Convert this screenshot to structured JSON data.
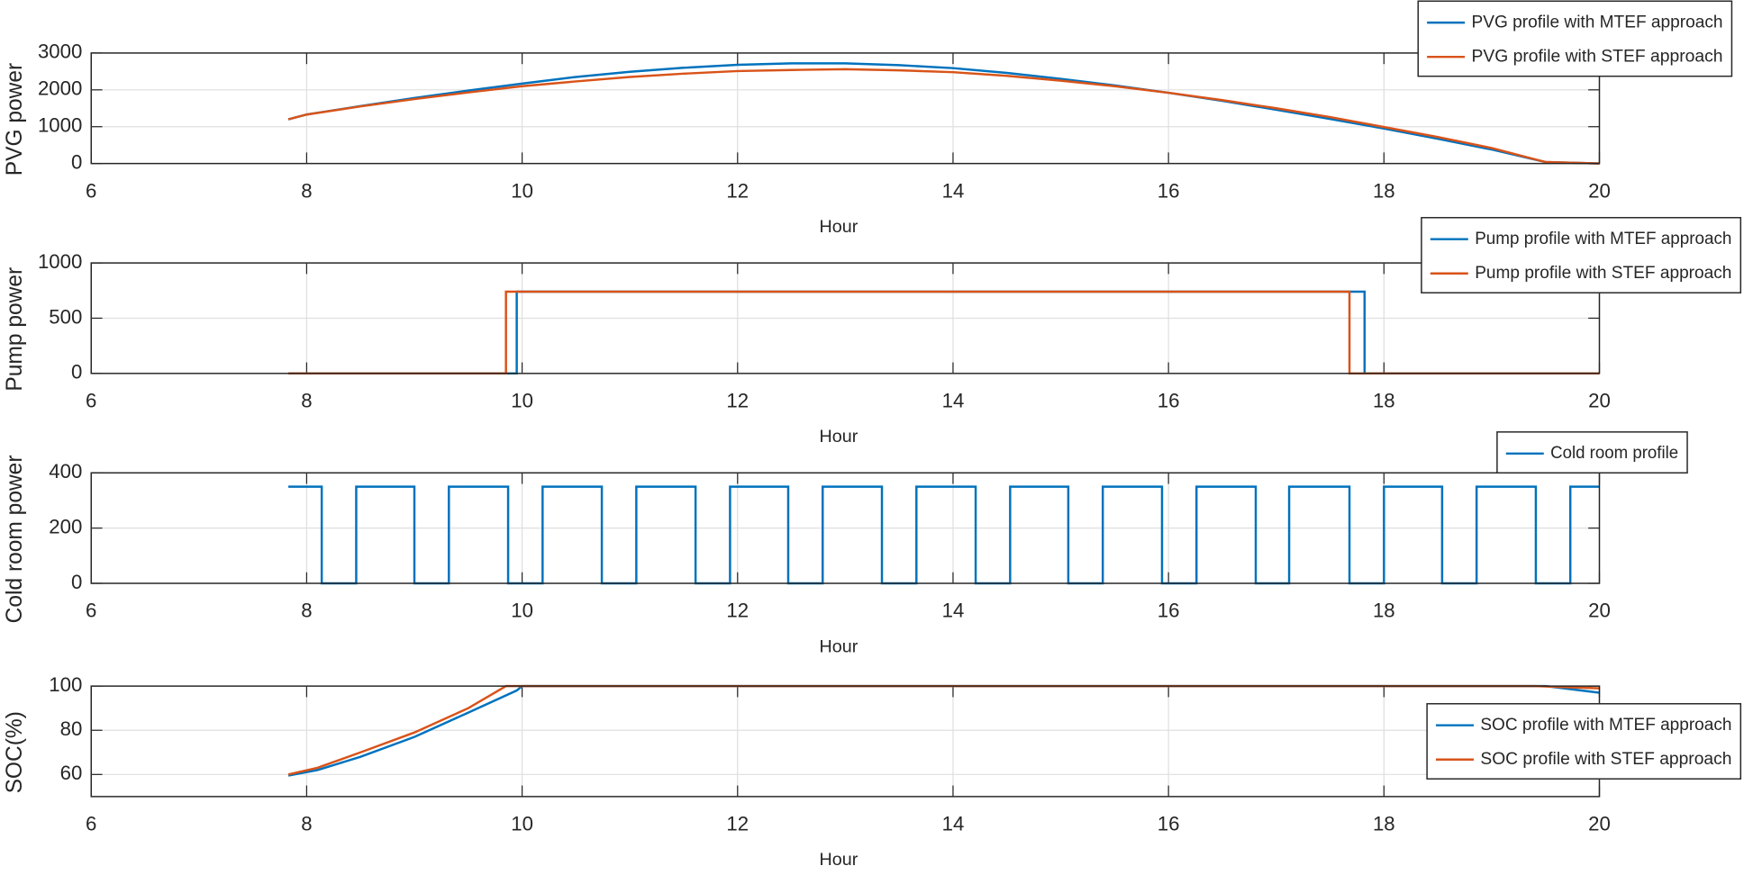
{
  "chart_data": [
    {
      "type": "line",
      "xlabel": "Hour",
      "ylabel": "PVG power",
      "xlim": [
        6,
        20
      ],
      "xticks": [
        6,
        8,
        10,
        12,
        14,
        16,
        18,
        20
      ],
      "ylim": [
        0,
        3000
      ],
      "yticks": [
        0,
        1000,
        2000,
        3000
      ],
      "grid": true,
      "legend": "northeast",
      "series": [
        {
          "name": "PVG profile with MTEF approach",
          "color": "#0072BD",
          "x": [
            7.83,
            8,
            8.5,
            9,
            9.5,
            10,
            10.5,
            11,
            11.5,
            12,
            12.5,
            13,
            13.5,
            14,
            14.5,
            15,
            15.5,
            16,
            16.5,
            17,
            17.5,
            18,
            18.5,
            19,
            19.5,
            20
          ],
          "values": [
            1200,
            1330,
            1560,
            1780,
            1980,
            2170,
            2350,
            2490,
            2600,
            2680,
            2720,
            2720,
            2670,
            2590,
            2460,
            2300,
            2120,
            1920,
            1700,
            1460,
            1210,
            950,
            670,
            380,
            40,
            0
          ]
        },
        {
          "name": "PVG profile with STEF approach",
          "color": "#D95319",
          "x": [
            7.83,
            8,
            8.5,
            9,
            9.5,
            10,
            10.5,
            11,
            11.5,
            12,
            12.5,
            13,
            13.5,
            14,
            14.5,
            15,
            15.5,
            16,
            16.5,
            17,
            17.5,
            18,
            18.5,
            19,
            19.5,
            20
          ],
          "values": [
            1200,
            1330,
            1550,
            1750,
            1930,
            2100,
            2230,
            2350,
            2440,
            2510,
            2540,
            2560,
            2530,
            2480,
            2380,
            2250,
            2100,
            1920,
            1720,
            1500,
            1260,
            990,
            720,
            420,
            40,
            0
          ]
        }
      ]
    },
    {
      "type": "line",
      "xlabel": "Hour",
      "ylabel": "Pump power",
      "xlim": [
        6,
        20
      ],
      "xticks": [
        6,
        8,
        10,
        12,
        14,
        16,
        18,
        20
      ],
      "ylim": [
        0,
        1000
      ],
      "yticks": [
        0,
        500,
        1000
      ],
      "grid": true,
      "legend": "northeast",
      "series": [
        {
          "name": "Pump profile with MTEF approach",
          "color": "#0072BD",
          "x": [
            7.83,
            9.95,
            9.95,
            17.82,
            17.82,
            20
          ],
          "values": [
            0,
            0,
            740,
            740,
            0,
            0
          ]
        },
        {
          "name": "Pump profile with STEF approach",
          "color": "#D95319",
          "x": [
            7.83,
            9.85,
            9.85,
            17.68,
            17.68,
            20
          ],
          "values": [
            0,
            0,
            740,
            740,
            0,
            0
          ]
        }
      ]
    },
    {
      "type": "line",
      "xlabel": "Hour",
      "ylabel": "Cold room power",
      "xlim": [
        6,
        20
      ],
      "xticks": [
        6,
        8,
        10,
        12,
        14,
        16,
        18,
        20
      ],
      "ylim": [
        0,
        400
      ],
      "yticks": [
        0,
        200,
        400
      ],
      "grid": true,
      "legend": "northeast",
      "series": [
        {
          "name": "Cold room profile",
          "color": "#0072BD",
          "x": [
            7.83,
            8.14,
            8.14,
            8.46,
            8.46,
            9.0,
            9.0,
            9.32,
            9.32,
            9.87,
            9.87,
            10.19,
            10.19,
            10.74,
            10.74,
            11.06,
            11.06,
            11.61,
            11.61,
            11.93,
            11.93,
            12.47,
            12.47,
            12.79,
            12.79,
            13.34,
            13.34,
            13.66,
            13.66,
            14.21,
            14.21,
            14.53,
            14.53,
            15.07,
            15.07,
            15.39,
            15.39,
            15.94,
            15.94,
            16.26,
            16.26,
            16.81,
            16.81,
            17.12,
            17.12,
            17.68,
            17.68,
            18.0,
            18.0,
            18.54,
            18.54,
            18.86,
            18.86,
            19.41,
            19.41,
            19.73,
            19.73,
            20
          ],
          "values": [
            350,
            350,
            0,
            0,
            350,
            350,
            0,
            0,
            350,
            350,
            0,
            0,
            350,
            350,
            0,
            0,
            350,
            350,
            0,
            0,
            350,
            350,
            0,
            0,
            350,
            350,
            0,
            0,
            350,
            350,
            0,
            0,
            350,
            350,
            0,
            0,
            350,
            350,
            0,
            0,
            350,
            350,
            0,
            0,
            350,
            350,
            0,
            0,
            350,
            350,
            0,
            0,
            350,
            350,
            0,
            0,
            350,
            350
          ]
        }
      ]
    },
    {
      "type": "line",
      "xlabel": "Hour",
      "ylabel": "SOC(%)",
      "xlim": [
        6,
        20
      ],
      "xticks": [
        6,
        8,
        10,
        12,
        14,
        16,
        18,
        20
      ],
      "ylim": [
        50,
        100
      ],
      "yticks": [
        60,
        80,
        100
      ],
      "grid": true,
      "legend": "east",
      "series": [
        {
          "name": "SOC profile with MTEF approach",
          "color": "#0072BD",
          "x": [
            7.83,
            8.1,
            8.5,
            9,
            9.5,
            9.95,
            10,
            19.5,
            20
          ],
          "values": [
            59.5,
            62,
            68,
            77,
            88,
            98,
            100,
            100,
            97
          ]
        },
        {
          "name": "SOC profile with STEF approach",
          "color": "#D95319",
          "x": [
            7.83,
            8.1,
            8.5,
            9,
            9.5,
            9.85,
            19.4,
            20
          ],
          "values": [
            60,
            63,
            70,
            79,
            90,
            100,
            100,
            99
          ]
        }
      ]
    }
  ]
}
